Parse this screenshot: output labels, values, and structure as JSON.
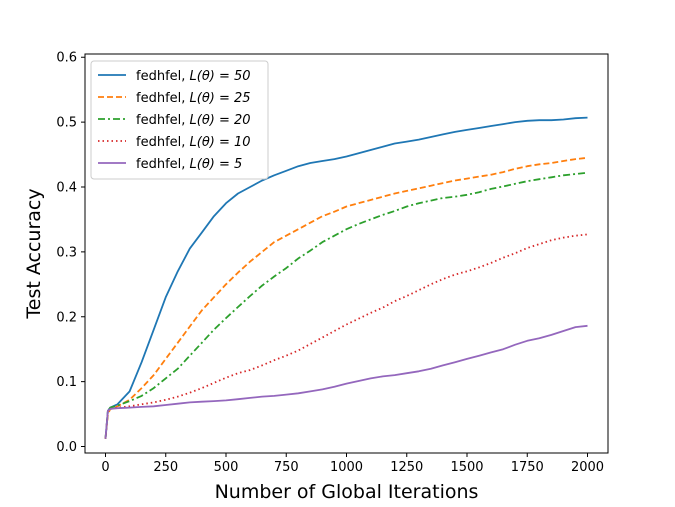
{
  "chart_data": {
    "type": "line",
    "title": "",
    "xlabel": "Number of Global Iterations",
    "ylabel": "Test Accuracy",
    "xlim": [
      -85,
      2085
    ],
    "ylim": [
      -0.01,
      0.605
    ],
    "xticks": [
      0,
      250,
      500,
      750,
      1000,
      1250,
      1500,
      1750,
      2000
    ],
    "yticks": [
      0.0,
      0.1,
      0.2,
      0.3,
      0.4,
      0.5,
      0.6
    ],
    "xtick_labels": [
      "0",
      "250",
      "500",
      "750",
      "1000",
      "1250",
      "1500",
      "1750",
      "2000"
    ],
    "ytick_labels": [
      "0.0",
      "0.1",
      "0.2",
      "0.3",
      "0.4",
      "0.5",
      "0.6"
    ],
    "grid": false,
    "legend_position": "top-left",
    "series": [
      {
        "name": "fedhfel, L(θ) = 50",
        "legend_base": "fedhfel, ",
        "legend_param": "L(θ) = 50",
        "color": "#1f77b4",
        "style": "solid",
        "x": [
          0,
          10,
          20,
          50,
          100,
          150,
          200,
          250,
          300,
          350,
          400,
          450,
          500,
          550,
          600,
          650,
          700,
          750,
          800,
          850,
          900,
          950,
          1000,
          1050,
          1100,
          1150,
          1200,
          1250,
          1300,
          1350,
          1400,
          1450,
          1500,
          1550,
          1600,
          1650,
          1700,
          1750,
          1800,
          1850,
          1900,
          1950,
          2000
        ],
        "y": [
          0.012,
          0.055,
          0.06,
          0.065,
          0.085,
          0.13,
          0.18,
          0.23,
          0.27,
          0.305,
          0.33,
          0.355,
          0.375,
          0.39,
          0.4,
          0.41,
          0.418,
          0.425,
          0.432,
          0.437,
          0.44,
          0.443,
          0.447,
          0.452,
          0.457,
          0.462,
          0.467,
          0.47,
          0.473,
          0.477,
          0.481,
          0.485,
          0.488,
          0.491,
          0.494,
          0.497,
          0.5,
          0.502,
          0.503,
          0.503,
          0.504,
          0.506,
          0.507
        ]
      },
      {
        "name": "fedhfel, L(θ) = 25",
        "legend_base": "fedhfel, ",
        "legend_param": "L(θ) = 25",
        "color": "#ff7f0e",
        "style": "dashed",
        "x": [
          0,
          10,
          20,
          50,
          100,
          150,
          200,
          250,
          300,
          350,
          400,
          450,
          500,
          550,
          600,
          650,
          700,
          750,
          800,
          850,
          900,
          950,
          1000,
          1050,
          1100,
          1150,
          1200,
          1250,
          1300,
          1350,
          1400,
          1450,
          1500,
          1550,
          1600,
          1650,
          1700,
          1750,
          1800,
          1850,
          1900,
          1950,
          2000
        ],
        "y": [
          0.012,
          0.05,
          0.058,
          0.062,
          0.072,
          0.09,
          0.11,
          0.135,
          0.16,
          0.185,
          0.21,
          0.23,
          0.25,
          0.268,
          0.285,
          0.3,
          0.315,
          0.325,
          0.335,
          0.345,
          0.355,
          0.362,
          0.37,
          0.375,
          0.38,
          0.385,
          0.39,
          0.394,
          0.398,
          0.402,
          0.406,
          0.41,
          0.413,
          0.416,
          0.419,
          0.423,
          0.428,
          0.432,
          0.435,
          0.437,
          0.44,
          0.443,
          0.445
        ]
      },
      {
        "name": "fedhfel, L(θ) = 20",
        "legend_base": "fedhfel, ",
        "legend_param": "L(θ) = 20",
        "color": "#2ca02c",
        "style": "dashdot",
        "x": [
          0,
          10,
          20,
          50,
          100,
          150,
          200,
          250,
          300,
          350,
          400,
          450,
          500,
          550,
          600,
          650,
          700,
          750,
          800,
          850,
          900,
          950,
          1000,
          1050,
          1100,
          1150,
          1200,
          1250,
          1300,
          1350,
          1400,
          1450,
          1500,
          1550,
          1600,
          1650,
          1700,
          1750,
          1800,
          1850,
          1900,
          1950,
          2000
        ],
        "y": [
          0.012,
          0.055,
          0.06,
          0.063,
          0.07,
          0.078,
          0.09,
          0.105,
          0.12,
          0.14,
          0.16,
          0.18,
          0.198,
          0.215,
          0.232,
          0.248,
          0.262,
          0.275,
          0.29,
          0.302,
          0.315,
          0.325,
          0.335,
          0.343,
          0.35,
          0.357,
          0.363,
          0.37,
          0.375,
          0.379,
          0.383,
          0.385,
          0.388,
          0.392,
          0.397,
          0.401,
          0.405,
          0.409,
          0.412,
          0.415,
          0.418,
          0.42,
          0.422
        ]
      },
      {
        "name": "fedhfel, L(θ) = 10",
        "legend_base": "fedhfel, ",
        "legend_param": "L(θ) = 10",
        "color": "#d62728",
        "style": "dotted",
        "x": [
          0,
          10,
          20,
          50,
          100,
          150,
          200,
          250,
          300,
          350,
          400,
          450,
          500,
          550,
          600,
          650,
          700,
          750,
          800,
          850,
          900,
          950,
          1000,
          1050,
          1100,
          1150,
          1200,
          1250,
          1300,
          1350,
          1400,
          1450,
          1500,
          1550,
          1600,
          1650,
          1700,
          1750,
          1800,
          1850,
          1900,
          1950,
          2000
        ],
        "y": [
          0.012,
          0.055,
          0.058,
          0.06,
          0.062,
          0.065,
          0.068,
          0.072,
          0.077,
          0.083,
          0.09,
          0.098,
          0.106,
          0.113,
          0.118,
          0.125,
          0.133,
          0.14,
          0.148,
          0.158,
          0.168,
          0.178,
          0.188,
          0.197,
          0.206,
          0.214,
          0.224,
          0.232,
          0.241,
          0.25,
          0.258,
          0.265,
          0.27,
          0.276,
          0.283,
          0.291,
          0.298,
          0.306,
          0.312,
          0.318,
          0.322,
          0.325,
          0.327
        ]
      },
      {
        "name": "fedhfel, L(θ) = 5",
        "legend_base": "fedhfel, ",
        "legend_param": "L(θ) = 5",
        "color": "#9467bd",
        "style": "solid",
        "x": [
          0,
          10,
          20,
          50,
          100,
          150,
          200,
          250,
          300,
          350,
          400,
          450,
          500,
          550,
          600,
          650,
          700,
          750,
          800,
          850,
          900,
          950,
          1000,
          1050,
          1100,
          1150,
          1200,
          1250,
          1300,
          1350,
          1400,
          1450,
          1500,
          1550,
          1600,
          1650,
          1700,
          1750,
          1800,
          1850,
          1900,
          1950,
          2000
        ],
        "y": [
          0.012,
          0.055,
          0.058,
          0.059,
          0.06,
          0.061,
          0.062,
          0.064,
          0.066,
          0.068,
          0.069,
          0.07,
          0.071,
          0.073,
          0.075,
          0.077,
          0.078,
          0.08,
          0.082,
          0.085,
          0.088,
          0.092,
          0.097,
          0.101,
          0.105,
          0.108,
          0.11,
          0.113,
          0.116,
          0.12,
          0.125,
          0.13,
          0.135,
          0.14,
          0.145,
          0.15,
          0.157,
          0.163,
          0.167,
          0.172,
          0.178,
          0.184,
          0.186
        ]
      }
    ]
  }
}
